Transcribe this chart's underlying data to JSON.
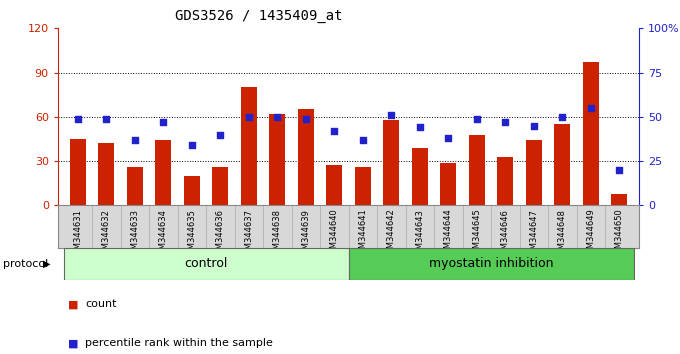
{
  "title": "GDS3526 / 1435409_at",
  "categories": [
    "GSM344631",
    "GSM344632",
    "GSM344633",
    "GSM344634",
    "GSM344635",
    "GSM344636",
    "GSM344637",
    "GSM344638",
    "GSM344639",
    "GSM344640",
    "GSM344641",
    "GSM344642",
    "GSM344643",
    "GSM344644",
    "GSM344645",
    "GSM344646",
    "GSM344647",
    "GSM344648",
    "GSM344649",
    "GSM344650"
  ],
  "counts": [
    45,
    42,
    26,
    44,
    20,
    26,
    80,
    62,
    65,
    27,
    26,
    58,
    39,
    29,
    48,
    33,
    44,
    55,
    97,
    8
  ],
  "percentiles": [
    49,
    49,
    37,
    47,
    34,
    40,
    50,
    50,
    49,
    42,
    37,
    51,
    44,
    38,
    49,
    47,
    45,
    50,
    55,
    20
  ],
  "bar_color": "#cc2200",
  "dot_color": "#2222cc",
  "control_color": "#ccffcc",
  "myostatin_color": "#55cc55",
  "control_label": "control",
  "myostatin_label": "myostatin inhibition",
  "protocol_label": "protocol",
  "legend_count": "count",
  "legend_pct": "percentile rank within the sample",
  "ylim_left": [
    0,
    120
  ],
  "ylim_right": [
    0,
    100
  ],
  "yticks_left": [
    0,
    30,
    60,
    90,
    120
  ],
  "yticks_right": [
    0,
    25,
    50,
    75,
    100
  ],
  "background_color": "#ffffff"
}
